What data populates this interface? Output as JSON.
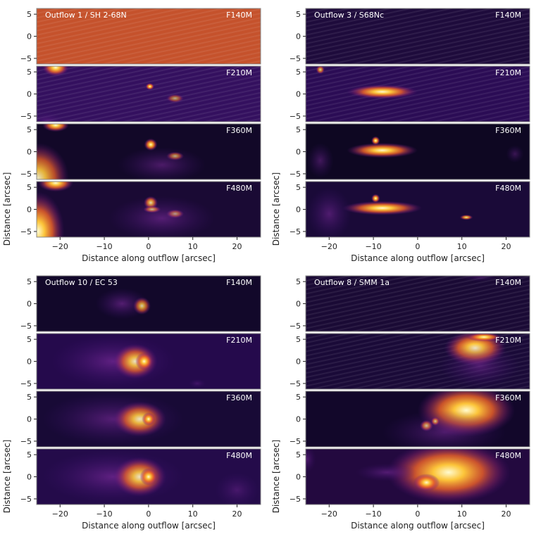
{
  "chart_data": [
    {
      "type": "heatmap",
      "title": "Outflow 1 / SH 2-68N",
      "panels": [
        "F140M",
        "F210M",
        "F360M",
        "F480M"
      ],
      "xlabel": "Distance along outflow [arcsec]",
      "ylabel": "Distance [arcsec]",
      "xlim": [
        -25.3,
        25.3
      ],
      "ylim": [
        -6.3,
        6.3
      ],
      "xticks": [
        -20,
        -10,
        0,
        10,
        20
      ],
      "yticks": [
        5,
        0,
        -5
      ],
      "colormap": "inferno"
    },
    {
      "type": "heatmap",
      "title": "Outflow 3 / S68Nc",
      "panels": [
        "F140M",
        "F210M",
        "F360M",
        "F480M"
      ],
      "xlabel": "Distance along outflow [arcsec]",
      "ylabel": "Distance [arcsec]",
      "xlim": [
        -25.3,
        25.3
      ],
      "ylim": [
        -6.3,
        6.3
      ],
      "xticks": [
        -20,
        -10,
        0,
        10,
        20
      ],
      "yticks": [
        5,
        0,
        -5
      ],
      "colormap": "inferno"
    },
    {
      "type": "heatmap",
      "title": "Outflow 10 / EC 53",
      "panels": [
        "F140M",
        "F210M",
        "F360M",
        "F480M"
      ],
      "xlabel": "Distance along outflow [arcsec]",
      "ylabel": "Distance [arcsec]",
      "xlim": [
        -25.3,
        25.3
      ],
      "ylim": [
        -6.3,
        6.3
      ],
      "xticks": [
        -20,
        -10,
        0,
        10,
        20
      ],
      "yticks": [
        5,
        0,
        -5
      ],
      "colormap": "inferno"
    },
    {
      "type": "heatmap",
      "title": "Outflow 8 / SMM 1a",
      "panels": [
        "F140M",
        "F210M",
        "F360M",
        "F480M"
      ],
      "xlabel": "Distance along outflow [arcsec]",
      "ylabel": "Distance [arcsec]",
      "xlim": [
        -25.3,
        25.3
      ],
      "ylim": [
        -6.3,
        6.3
      ],
      "xticks": [
        -20,
        -10,
        0,
        10,
        20
      ],
      "yticks": [
        5,
        0,
        -5
      ],
      "colormap": "inferno"
    }
  ]
}
